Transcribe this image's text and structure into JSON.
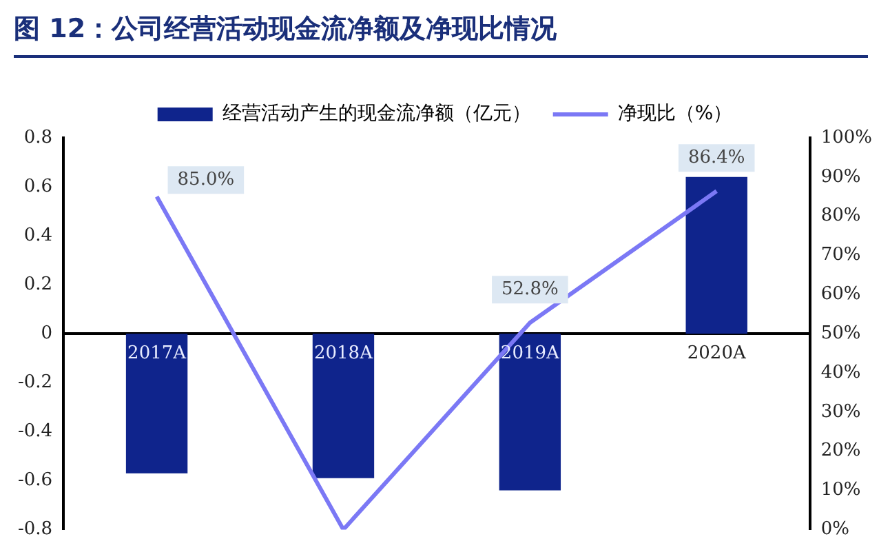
{
  "chart_data": {
    "type": "bar",
    "title": "图 12：公司经营活动现金流净额及净现比情况",
    "categories": [
      "2017A",
      "2018A",
      "2019A",
      "2020A"
    ],
    "series": [
      {
        "name": "经营活动产生的现金流净额（亿元）",
        "color": "#0f248c",
        "values": [
          -0.57,
          -0.59,
          -0.64,
          0.64
        ]
      },
      {
        "name": "净现比（%）",
        "type": "line",
        "axis": "y2",
        "color": "#7b78f5",
        "values": [
          85.0,
          0,
          52.8,
          86.4
        ],
        "value_labels": [
          "85.0%",
          null,
          "52.8%",
          "86.4%"
        ]
      }
    ],
    "ylim": [
      -0.8,
      0.8
    ],
    "yticks": [
      -0.8,
      -0.6,
      -0.4,
      -0.2,
      0,
      0.2,
      0.4,
      0.6,
      0.8
    ],
    "y2lim": [
      0,
      100
    ],
    "y2ticks": [
      {
        "value": 0,
        "label": "0%"
      },
      {
        "value": 10,
        "label": "10%"
      },
      {
        "value": 20,
        "label": "20%"
      },
      {
        "value": 30,
        "label": "30%"
      },
      {
        "value": 40,
        "label": "40%"
      },
      {
        "value": 50,
        "label": "50%"
      },
      {
        "value": 60,
        "label": "60%"
      },
      {
        "value": 70,
        "label": "70%"
      },
      {
        "value": 80,
        "label": "80%"
      },
      {
        "value": 90,
        "label": "90%"
      },
      {
        "value": 100,
        "label": "100%"
      }
    ],
    "grid": false,
    "legend": "top",
    "marker": "none"
  }
}
